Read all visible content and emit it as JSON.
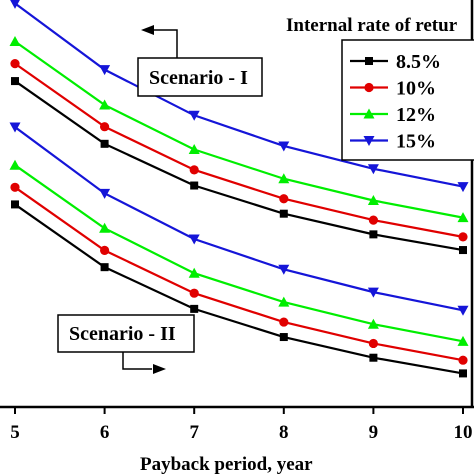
{
  "chart_data": {
    "type": "line",
    "title": "",
    "xlabel": "Payback period, year",
    "ylabel": "",
    "xlim": [
      4.8,
      10.1
    ],
    "ylim": [
      0,
      1000
    ],
    "x_ticks": [
      "5",
      "6",
      "7",
      "8",
      "9",
      "10"
    ],
    "grid": false,
    "legend_title": "Internal rate of retur",
    "legend_position": "top-right",
    "scenarios": [
      {
        "label": "Scenario - I",
        "series": [
          {
            "name": "8.5%",
            "color": "#000000",
            "marker": "square",
            "x": [
              5,
              6,
              7,
              8,
              9,
              10
            ],
            "values": [
              889,
              713,
              596,
              517,
              459,
              415
            ]
          },
          {
            "name": "10%",
            "color": "#e00000",
            "marker": "circle",
            "x": [
              5,
              6,
              7,
              8,
              9,
              10
            ],
            "values": [
              938,
              761,
              640,
              559,
              499,
              452
            ]
          },
          {
            "name": "12%",
            "color": "#00ee00",
            "marker": "triangle-up",
            "x": [
              5,
              6,
              7,
              8,
              9,
              10
            ],
            "values": [
              1000,
              822,
              697,
              615,
              554,
              506
            ]
          },
          {
            "name": "15%",
            "color": "#1515d8",
            "marker": "triangle-down",
            "x": [
              5,
              6,
              7,
              8,
              9,
              10
            ],
            "values": [
              1107,
              921,
              793,
              707,
              643,
              593
            ]
          }
        ]
      },
      {
        "label": "Scenario - II",
        "series": [
          {
            "name": "8.5%",
            "color": "#000000",
            "marker": "square",
            "x": [
              5,
              6,
              7,
              8,
              9,
              10
            ],
            "values": [
              543,
              367,
              250,
              171,
              113,
              69
            ]
          },
          {
            "name": "10%",
            "color": "#e00000",
            "marker": "circle",
            "x": [
              5,
              6,
              7,
              8,
              9,
              10
            ],
            "values": [
              591,
              414,
              294,
              213,
              153,
              106
            ]
          },
          {
            "name": "12%",
            "color": "#00ee00",
            "marker": "triangle-up",
            "x": [
              5,
              6,
              7,
              8,
              9,
              10
            ],
            "values": [
              653,
              476,
              350,
              269,
              207,
              159
            ]
          },
          {
            "name": "15%",
            "color": "#1515d8",
            "marker": "triangle-down",
            "x": [
              5,
              6,
              7,
              8,
              9,
              10
            ],
            "values": [
              760,
              574,
              446,
              361,
              297,
              246
            ]
          }
        ]
      }
    ]
  }
}
